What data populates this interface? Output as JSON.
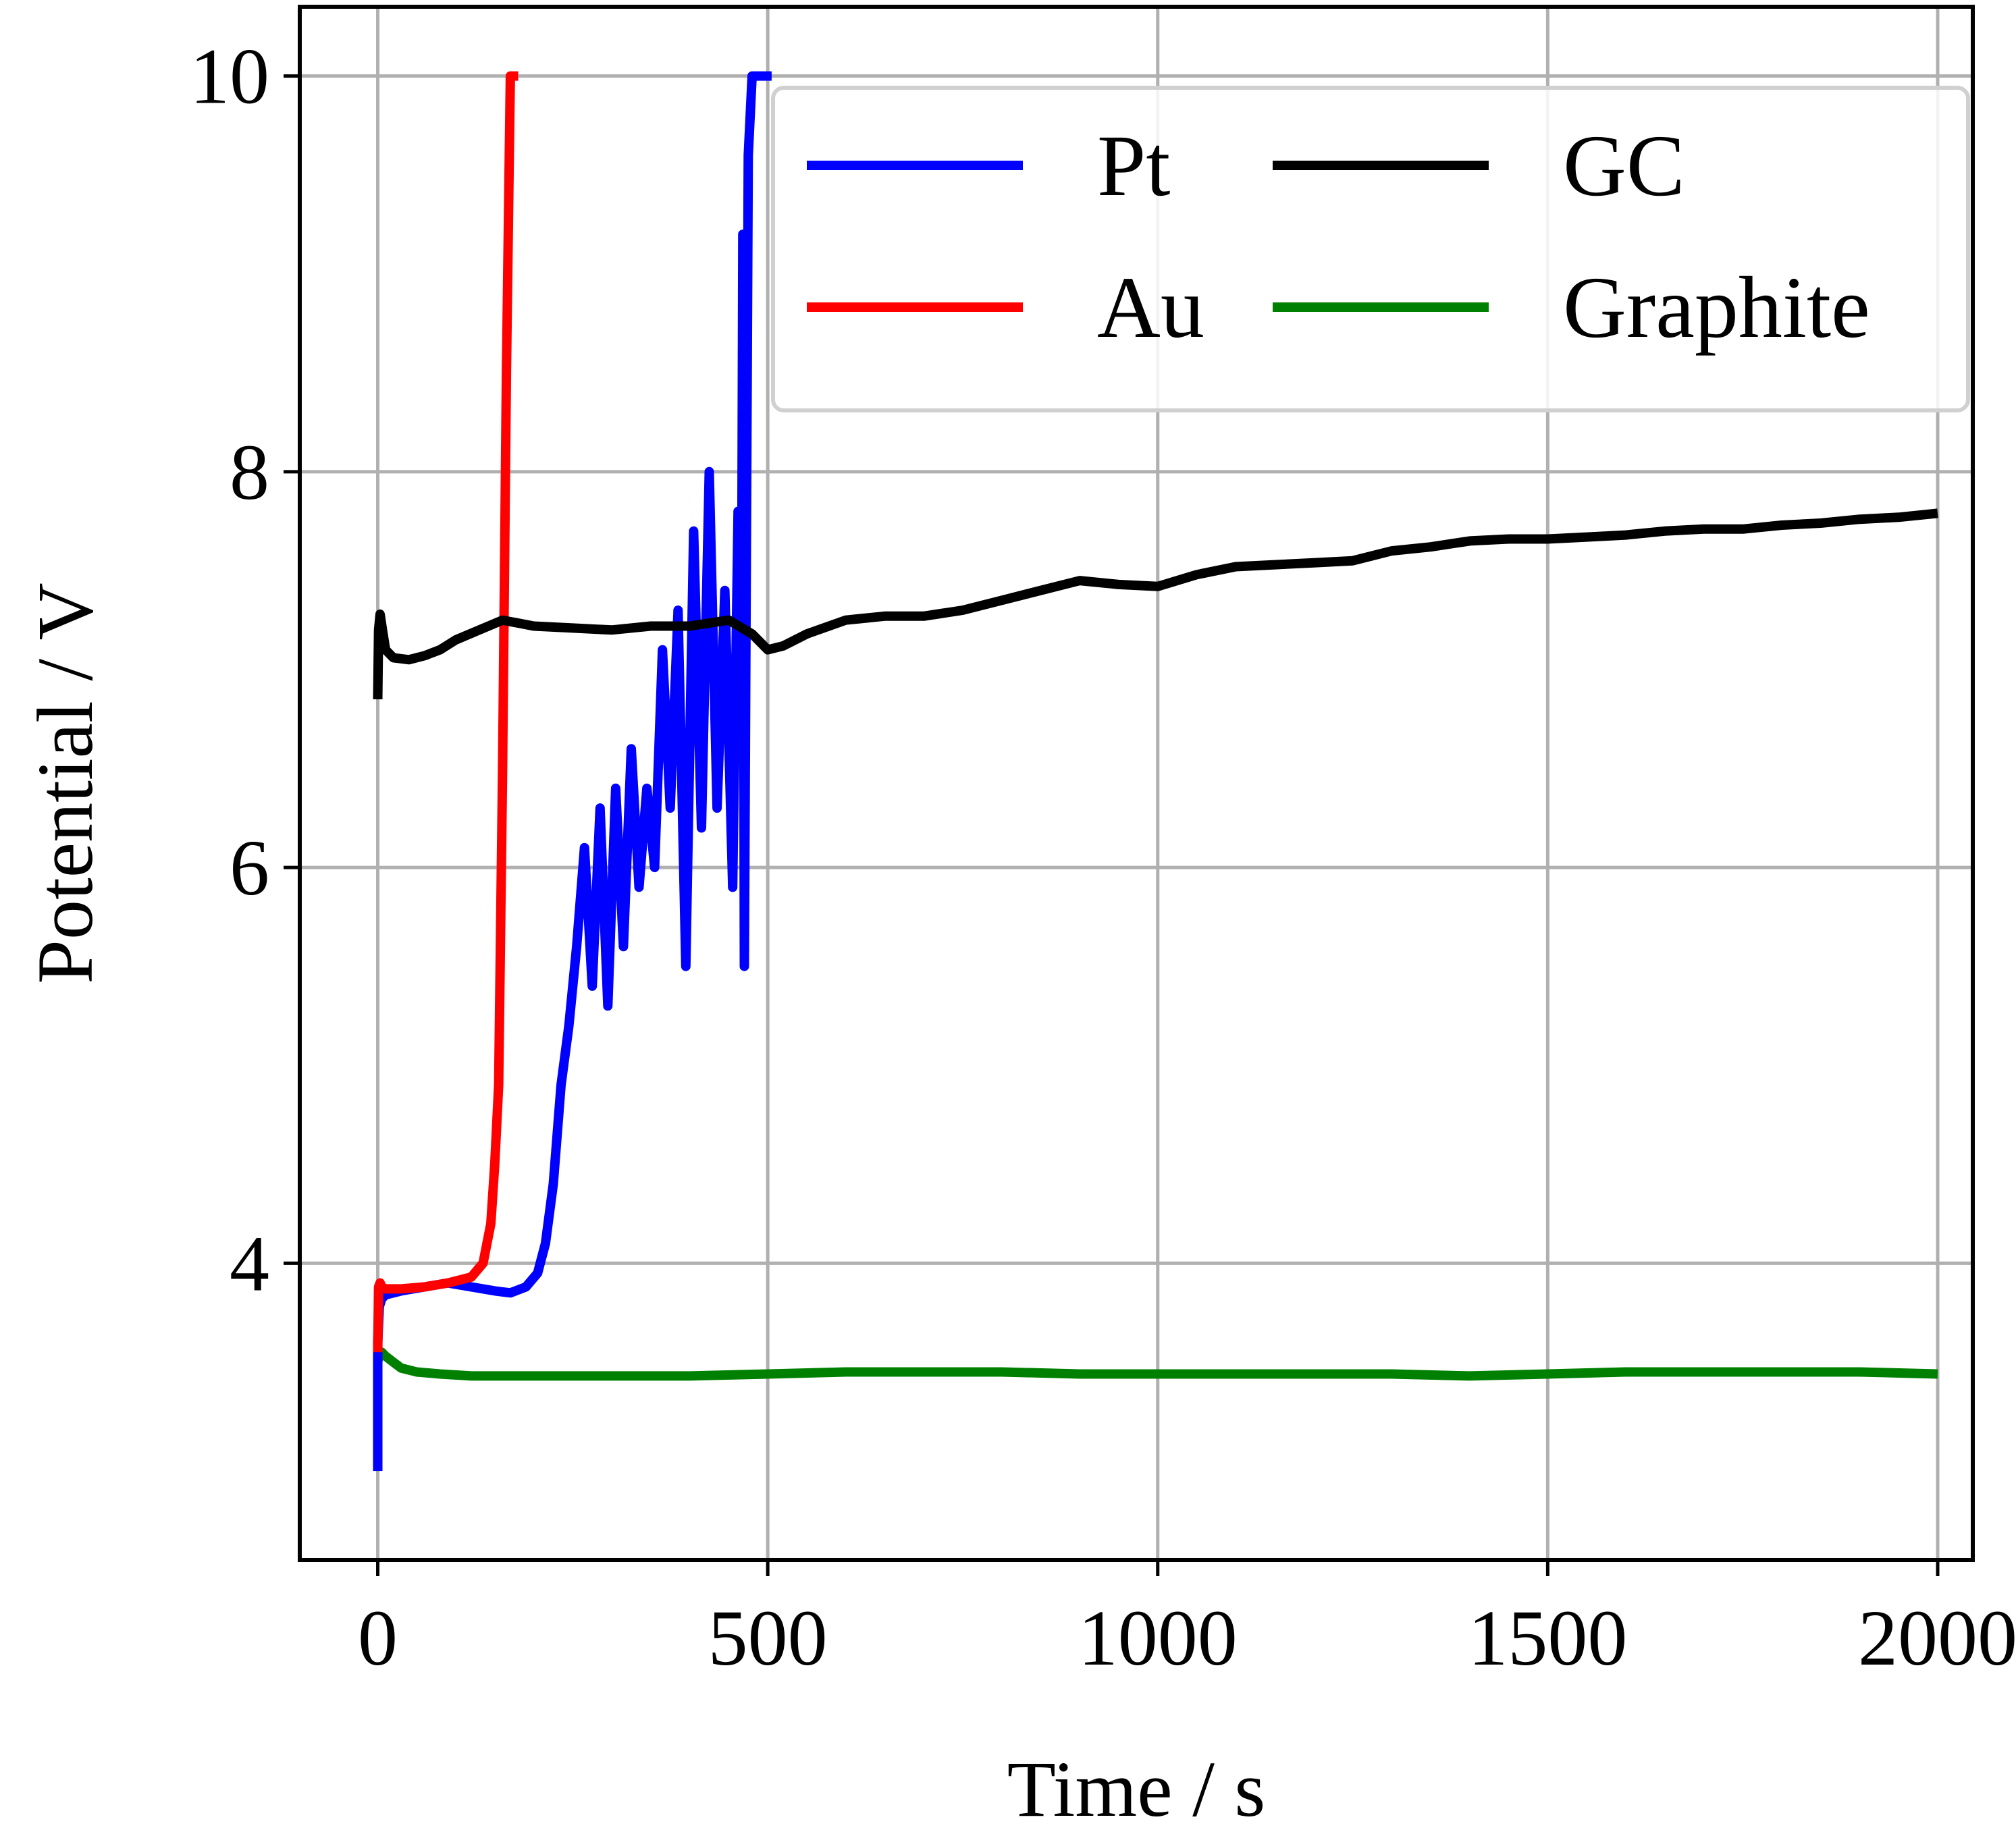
{
  "chart_data": {
    "type": "line",
    "title": "",
    "xlabel": "Time / s",
    "ylabel": "Potential / V",
    "xlim": [
      -100,
      2045
    ],
    "ylim": [
      2.5,
      10.35
    ],
    "xticks": [
      0,
      500,
      1000,
      1500,
      2000
    ],
    "xtick_labels": [
      "0",
      "500",
      "1000",
      "1500",
      "2000"
    ],
    "yticks": [
      4,
      6,
      8,
      10
    ],
    "ytick_labels": [
      "4",
      "6",
      "8",
      "10"
    ],
    "grid": true,
    "legend": {
      "position": "top-right",
      "columns": 2
    },
    "series": [
      {
        "name": "Pt",
        "color": "#0000ff",
        "x": [
          0,
          0,
          2,
          5,
          10,
          30,
          60,
          90,
          120,
          150,
          170,
          190,
          205,
          215,
          225,
          235,
          245,
          255,
          265,
          275,
          285,
          295,
          305,
          315,
          325,
          335,
          345,
          355,
          365,
          375,
          385,
          395,
          405,
          415,
          425,
          435,
          445,
          455,
          462,
          466,
          468,
          470,
          475,
          480,
          490,
          505
        ],
        "y": [
          2.95,
          3.6,
          3.78,
          3.82,
          3.84,
          3.86,
          3.88,
          3.9,
          3.88,
          3.86,
          3.85,
          3.88,
          3.95,
          4.1,
          4.4,
          4.9,
          5.2,
          5.6,
          6.1,
          5.4,
          6.3,
          5.3,
          6.4,
          5.6,
          6.6,
          5.9,
          6.4,
          6.0,
          7.1,
          6.3,
          7.3,
          5.5,
          7.7,
          6.2,
          8.0,
          6.3,
          7.4,
          5.9,
          7.8,
          6.6,
          9.2,
          5.5,
          9.6,
          10.0,
          10.0,
          10.0
        ]
      },
      {
        "name": "Au",
        "color": "#ff0000",
        "x": [
          0,
          1,
          3,
          5,
          10,
          30,
          60,
          90,
          120,
          135,
          145,
          150,
          155,
          160,
          165,
          170,
          175,
          180
        ],
        "y": [
          3.55,
          3.88,
          3.9,
          3.88,
          3.87,
          3.87,
          3.88,
          3.9,
          3.93,
          4.0,
          4.2,
          4.5,
          4.9,
          6.5,
          8.5,
          10.0,
          10.0,
          10.0
        ],
        "break_x": 165
      },
      {
        "name": "GC",
        "color": "#000000",
        "x": [
          0,
          1,
          3,
          6,
          10,
          20,
          40,
          60,
          80,
          100,
          130,
          160,
          200,
          250,
          300,
          350,
          400,
          450,
          480,
          500,
          520,
          550,
          600,
          650,
          700,
          750,
          800,
          850,
          900,
          950,
          1000,
          1050,
          1100,
          1150,
          1200,
          1250,
          1300,
          1350,
          1400,
          1450,
          1500,
          1550,
          1600,
          1650,
          1700,
          1750,
          1800,
          1850,
          1900,
          1950,
          2000
        ],
        "y": [
          6.85,
          7.2,
          7.28,
          7.2,
          7.1,
          7.06,
          7.05,
          7.07,
          7.1,
          7.15,
          7.2,
          7.25,
          7.22,
          7.21,
          7.2,
          7.22,
          7.22,
          7.25,
          7.18,
          7.1,
          7.12,
          7.18,
          7.25,
          7.27,
          7.27,
          7.3,
          7.35,
          7.4,
          7.45,
          7.43,
          7.42,
          7.48,
          7.52,
          7.53,
          7.54,
          7.55,
          7.6,
          7.62,
          7.65,
          7.66,
          7.66,
          7.67,
          7.68,
          7.7,
          7.71,
          7.71,
          7.73,
          7.74,
          7.76,
          7.77,
          7.79
        ]
      },
      {
        "name": "Graphite",
        "color": "#008000",
        "x": [
          0,
          0,
          2,
          5,
          10,
          20,
          30,
          50,
          80,
          120,
          200,
          300,
          400,
          500,
          600,
          700,
          800,
          900,
          1000,
          1100,
          1200,
          1300,
          1400,
          1500,
          1600,
          1700,
          1800,
          1900,
          2000
        ],
        "y": [
          3.3,
          3.5,
          3.55,
          3.55,
          3.53,
          3.5,
          3.47,
          3.45,
          3.44,
          3.43,
          3.43,
          3.43,
          3.43,
          3.44,
          3.45,
          3.45,
          3.45,
          3.44,
          3.44,
          3.44,
          3.44,
          3.44,
          3.43,
          3.44,
          3.45,
          3.45,
          3.45,
          3.45,
          3.44
        ]
      }
    ]
  }
}
